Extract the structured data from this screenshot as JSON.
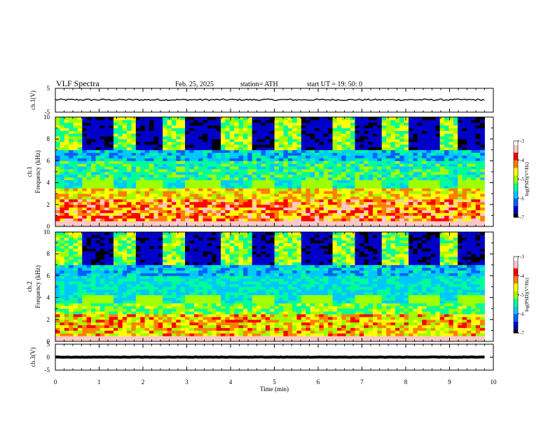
{
  "header": {
    "title": "VLF  Spectra",
    "date": "Feb. 25, 2025",
    "station": "station= ATH",
    "start_ut": "start  UT  =    19: 50: 0"
  },
  "chart_data": {
    "type": "heatmap",
    "x_axis": {
      "label": "Time  (min)",
      "range": [
        0,
        10
      ],
      "ticks": [
        "0",
        "1",
        "2",
        "3",
        "4",
        "5",
        "6",
        "7",
        "8",
        "9",
        "10"
      ],
      "data_end_min": 9.8
    },
    "panels": [
      {
        "kind": "timeseries",
        "ylabel": "ch.1(V)",
        "yrange": [
          -5,
          5
        ],
        "yticks": [
          "5",
          "-5"
        ],
        "level": 0.2,
        "noise": 0.35
      },
      {
        "kind": "spectrogram",
        "ylabel_top": "ch.1",
        "ylabel": "Frequency  (kHz)",
        "yrange": [
          0,
          10
        ],
        "yticks": [
          "0",
          "2",
          "4",
          "6",
          "8",
          "10"
        ],
        "quiet_intervals_min": [
          [
            0.6,
            1.3
          ],
          [
            1.8,
            2.5
          ],
          [
            3.0,
            3.8
          ],
          [
            4.5,
            5.0
          ],
          [
            5.6,
            6.3
          ],
          [
            6.8,
            7.5
          ],
          [
            8.1,
            8.8
          ],
          [
            9.2,
            9.8
          ]
        ],
        "tone_band_khz": [
          3.6,
          4.2
        ]
      },
      {
        "kind": "spectrogram",
        "ylabel_top": "ch.2",
        "ylabel": "Frequency  (kHz)",
        "yrange": [
          0,
          10
        ],
        "yticks": [
          "0",
          "2",
          "4",
          "6",
          "8",
          "10"
        ],
        "quiet_intervals_min": [
          [
            0.6,
            1.3
          ],
          [
            1.8,
            2.5
          ],
          [
            3.0,
            3.8
          ],
          [
            4.5,
            5.0
          ],
          [
            5.6,
            6.3
          ],
          [
            6.8,
            7.5
          ],
          [
            8.1,
            8.8
          ],
          [
            9.2,
            9.8
          ]
        ],
        "tone_band_khz": [
          3.6,
          4.2
        ]
      },
      {
        "kind": "timeseries",
        "ylabel": "ch.3(V)",
        "yrange": [
          -5,
          5
        ],
        "yticks": [
          "5",
          "0",
          "-5"
        ],
        "level": 0.0,
        "noise": 0.08
      }
    ],
    "colorbar": {
      "label": "log(PSD)(V²/Hz)",
      "range": [
        -7,
        -3
      ],
      "ticks": [
        "-3",
        "-4",
        "-5",
        "-6",
        "-7"
      ],
      "colors": [
        "#000000",
        "#0000c8",
        "#0060ff",
        "#00c8ff",
        "#00ff96",
        "#a0ff00",
        "#ffff00",
        "#ff8000",
        "#ff0000",
        "#ffc8c8",
        "#ffffff"
      ]
    }
  }
}
